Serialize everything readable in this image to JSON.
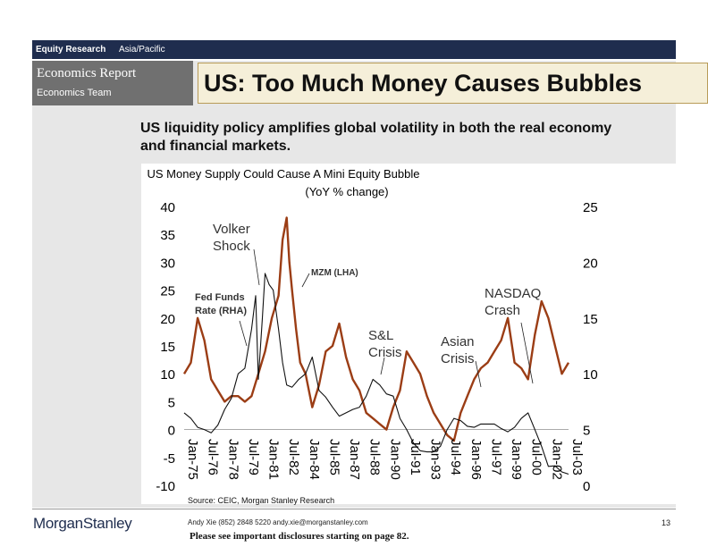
{
  "header": {
    "division": "Equity Research",
    "region": "Asia/Pacific",
    "report_type": "Economics Report",
    "team": "Economics Team",
    "headline": "US: Too Much Money Causes Bubbles"
  },
  "subtitle": "US liquidity policy amplifies global volatility in both the real economy and financial markets.",
  "source": "Source: CEIC, Morgan Stanley Research",
  "footer": {
    "logo": "MorganStanley",
    "contact": "Andy Xie (852) 2848 5220  andy.xie@morganstanley.com",
    "page": "13",
    "disclosure": "Please see important disclosures starting on page 82."
  },
  "colors": {
    "mzm": "#9b3d15",
    "fed": "#111111",
    "band": "#1f2d4e",
    "panel": "#e7e7e7",
    "headline_bg": "#f5efd9"
  },
  "chart_data": {
    "type": "line",
    "title": "US Money Supply Could Cause A Mini Equity Bubble",
    "subtitle": "(YoY % change)",
    "categories": [
      "Jan-75",
      "Jul-76",
      "Jan-78",
      "Jul-79",
      "Jan-81",
      "Jul-82",
      "Jan-84",
      "Jul-85",
      "Jan-87",
      "Jul-88",
      "Jan-90",
      "Jul-91",
      "Jan-93",
      "Jul-94",
      "Jan-96",
      "Jul-97",
      "Jan-99",
      "Jul-00",
      "Jan-02",
      "Jul-03"
    ],
    "ylim_left": [
      -10,
      40
    ],
    "yticks_left": [
      "40",
      "35",
      "30",
      "25",
      "20",
      "15",
      "10",
      "5",
      "0",
      "-5",
      "-10"
    ],
    "ylim_right": [
      0,
      25
    ],
    "yticks_right": [
      "25",
      "20",
      "15",
      "10",
      "5",
      "0"
    ],
    "series": [
      {
        "name": "MZM (LHA)",
        "axis": "left",
        "color": "#9b3d15",
        "x": [
          1975.0,
          1975.5,
          1976.0,
          1976.5,
          1977.0,
          1977.5,
          1978.0,
          1978.5,
          1979.0,
          1979.5,
          1980.0,
          1980.5,
          1981.0,
          1981.5,
          1982.0,
          1982.3,
          1982.6,
          1982.8,
          1983.0,
          1983.3,
          1983.6,
          1984.0,
          1984.5,
          1985.0,
          1985.5,
          1986.0,
          1986.5,
          1987.0,
          1987.5,
          1988.0,
          1988.5,
          1989.0,
          1989.5,
          1990.0,
          1990.5,
          1991.0,
          1991.5,
          1992.0,
          1992.5,
          1993.0,
          1993.5,
          1994.0,
          1994.5,
          1995.0,
          1995.5,
          1996.0,
          1996.5,
          1997.0,
          1997.5,
          1998.0,
          1998.5,
          1999.0,
          1999.5,
          2000.0,
          2000.5,
          2001.0,
          2001.5,
          2002.0,
          2002.5,
          2003.0,
          2003.5
        ],
        "values": [
          10,
          12,
          20,
          16,
          9,
          7,
          5,
          6,
          6,
          5,
          6,
          10,
          14,
          20,
          24,
          34,
          38,
          30,
          25,
          18,
          12,
          10,
          4,
          8,
          14,
          15,
          19,
          13,
          9,
          7,
          3,
          2,
          1,
          0,
          4,
          7,
          14,
          12,
          10,
          6,
          3,
          1,
          -1,
          -2,
          3,
          6,
          9,
          11,
          12,
          14,
          16,
          20,
          12,
          11,
          9,
          17,
          23,
          20,
          15,
          10,
          12
        ]
      },
      {
        "name": "Fed Funds Rate (RHA)",
        "axis": "right",
        "color": "#111111",
        "x": [
          1975.0,
          1975.5,
          1976.0,
          1976.5,
          1977.0,
          1977.5,
          1978.0,
          1978.5,
          1979.0,
          1979.5,
          1980.0,
          1980.3,
          1980.5,
          1980.8,
          1981.0,
          1981.3,
          1981.6,
          1982.0,
          1982.3,
          1982.6,
          1983.0,
          1983.5,
          1984.0,
          1984.5,
          1985.0,
          1985.5,
          1986.0,
          1986.5,
          1987.0,
          1987.5,
          1988.0,
          1988.5,
          1989.0,
          1989.5,
          1990.0,
          1990.5,
          1991.0,
          1991.5,
          1992.0,
          1992.5,
          1993.0,
          1993.5,
          1994.0,
          1994.5,
          1995.0,
          1995.5,
          1996.0,
          1996.5,
          1997.0,
          1997.5,
          1998.0,
          1998.5,
          1999.0,
          1999.5,
          2000.0,
          2000.5,
          2001.0,
          2001.5,
          2002.0,
          2002.5,
          2003.0,
          2003.5
        ],
        "values": [
          6.5,
          6,
          5.2,
          5,
          4.7,
          5.4,
          6.8,
          7.8,
          10,
          10.5,
          14,
          17,
          9.5,
          15,
          19,
          18,
          17.5,
          14,
          11,
          9,
          8.8,
          9.5,
          10,
          11.5,
          8.5,
          7.9,
          7,
          6.2,
          6.5,
          6.8,
          7,
          8,
          9.5,
          9,
          8.2,
          8,
          6,
          5,
          3.8,
          3.1,
          3,
          3,
          3.5,
          5,
          6,
          5.8,
          5.3,
          5.2,
          5.5,
          5.5,
          5.5,
          5.1,
          4.8,
          5.2,
          6,
          6.5,
          5,
          3.5,
          1.7,
          1.75,
          1.2,
          1
        ]
      }
    ],
    "annotations": [
      "Volker Shock",
      "MZM (LHA)",
      "Fed Funds Rate (RHA)",
      "S&L Crisis",
      "Asian Crisis",
      "NASDAQ Crash"
    ]
  }
}
